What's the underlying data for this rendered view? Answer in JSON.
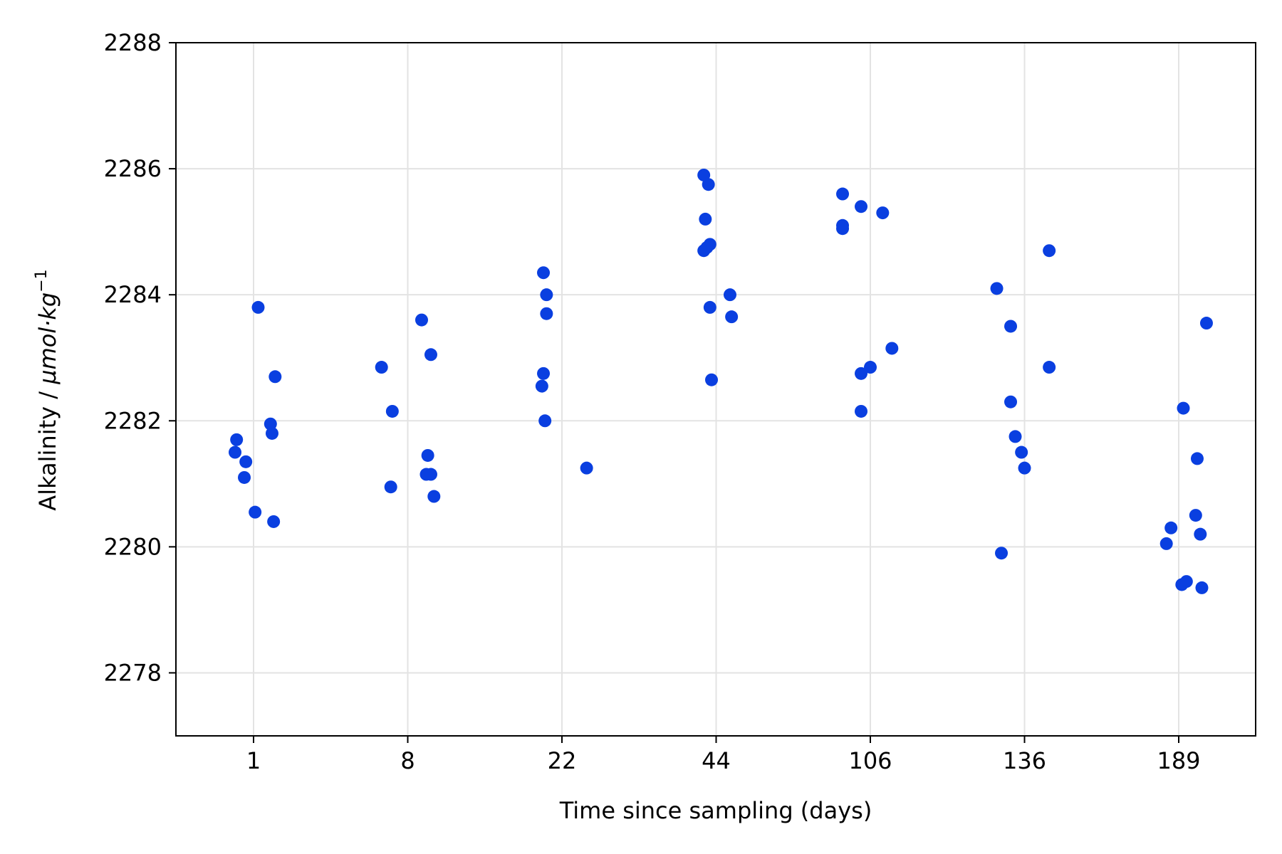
{
  "chart_data": {
    "type": "scatter",
    "xlabel": "Time since sampling (days)",
    "ylabel_text": "Alkalinity / ",
    "ylabel_unit_main": "μmol·kg",
    "ylabel_unit_exp": "−1",
    "ylim": [
      2277,
      2288
    ],
    "yticks": [
      2278,
      2280,
      2282,
      2284,
      2286,
      2288
    ],
    "grid": true,
    "point_color": "#0a3fe0",
    "categories": [
      "1",
      "8",
      "22",
      "44",
      "106",
      "136",
      "189"
    ],
    "groups": [
      {
        "label": "1",
        "points": [
          [
            -0.11,
            2281.7
          ],
          [
            -0.12,
            2281.5
          ],
          [
            -0.05,
            2281.35
          ],
          [
            -0.06,
            2281.1
          ],
          [
            0.01,
            2280.55
          ],
          [
            0.13,
            2280.4
          ],
          [
            0.03,
            2283.8
          ],
          [
            0.14,
            2282.7
          ],
          [
            0.11,
            2281.95
          ],
          [
            0.12,
            2281.8
          ]
        ]
      },
      {
        "label": "8",
        "points": [
          [
            -0.17,
            2282.85
          ],
          [
            -0.1,
            2282.15
          ],
          [
            -0.11,
            2280.95
          ],
          [
            0.09,
            2283.6
          ],
          [
            0.15,
            2283.05
          ],
          [
            0.13,
            2281.45
          ],
          [
            0.12,
            2281.15
          ],
          [
            0.15,
            2281.15
          ],
          [
            0.17,
            2280.8
          ]
        ]
      },
      {
        "label": "22",
        "points": [
          [
            -0.12,
            2284.35
          ],
          [
            -0.1,
            2284.0
          ],
          [
            -0.1,
            2283.7
          ],
          [
            -0.12,
            2282.75
          ],
          [
            -0.13,
            2282.55
          ],
          [
            -0.11,
            2282.0
          ],
          [
            0.16,
            2281.25
          ]
        ]
      },
      {
        "label": "44",
        "points": [
          [
            -0.08,
            2285.9
          ],
          [
            -0.05,
            2285.75
          ],
          [
            -0.07,
            2285.2
          ],
          [
            -0.04,
            2284.8
          ],
          [
            -0.06,
            2284.75
          ],
          [
            -0.08,
            2284.7
          ],
          [
            0.09,
            2284.0
          ],
          [
            -0.04,
            2283.8
          ],
          [
            0.1,
            2283.65
          ],
          [
            -0.03,
            2282.65
          ]
        ]
      },
      {
        "label": "106",
        "points": [
          [
            -0.18,
            2285.6
          ],
          [
            -0.06,
            2285.4
          ],
          [
            0.08,
            2285.3
          ],
          [
            -0.18,
            2285.1
          ],
          [
            -0.18,
            2285.05
          ],
          [
            0.14,
            2283.15
          ],
          [
            0.0,
            2282.85
          ],
          [
            -0.06,
            2282.75
          ],
          [
            -0.06,
            2282.15
          ]
        ]
      },
      {
        "label": "136",
        "points": [
          [
            -0.18,
            2284.1
          ],
          [
            0.16,
            2284.7
          ],
          [
            -0.09,
            2283.5
          ],
          [
            0.16,
            2282.85
          ],
          [
            -0.09,
            2282.3
          ],
          [
            -0.06,
            2281.75
          ],
          [
            -0.02,
            2281.5
          ],
          [
            0.0,
            2281.25
          ],
          [
            -0.15,
            2279.9
          ]
        ]
      },
      {
        "label": "189",
        "points": [
          [
            0.18,
            2283.55
          ],
          [
            0.03,
            2282.2
          ],
          [
            0.12,
            2281.4
          ],
          [
            0.11,
            2280.5
          ],
          [
            -0.05,
            2280.3
          ],
          [
            0.14,
            2280.2
          ],
          [
            -0.08,
            2280.05
          ],
          [
            0.02,
            2279.4
          ],
          [
            0.05,
            2279.45
          ],
          [
            0.15,
            2279.35
          ]
        ]
      }
    ]
  }
}
